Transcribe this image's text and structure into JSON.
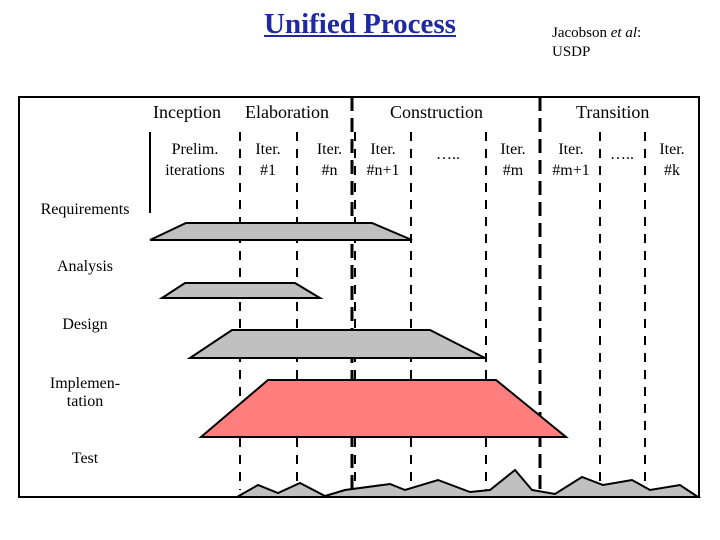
{
  "header": {
    "title": "Unified Process",
    "citation_author": "Jacobson",
    "citation_etal": "et al",
    "citation_colon": ":",
    "citation_source": "USDP"
  },
  "phases": {
    "inception": "Inception",
    "elaboration": "Elaboration",
    "construction": "Construction",
    "transition": "Transition"
  },
  "iterations": [
    {
      "line1": "Prelim.",
      "line2": "iterations"
    },
    {
      "line1": "Iter.",
      "line2": "#1"
    },
    {
      "line1": "Iter.",
      "line2": "#n"
    },
    {
      "line1": "Iter.",
      "line2": "#n+1"
    },
    {
      "line1": "…..",
      "line2": ""
    },
    {
      "line1": "Iter.",
      "line2": "#m"
    },
    {
      "line1": "Iter.",
      "line2": "#m+1"
    },
    {
      "line1": "…..",
      "line2": ""
    },
    {
      "line1": "Iter.",
      "line2": "#k"
    }
  ],
  "workflows": [
    {
      "line1": "Requirements",
      "line2": ""
    },
    {
      "line1": "Analysis",
      "line2": ""
    },
    {
      "line1": "Design",
      "line2": ""
    },
    {
      "line1": "Implemen-",
      "line2": "tation"
    },
    {
      "line1": "Test",
      "line2": ""
    }
  ],
  "colors": {
    "title": "#1f2aa0",
    "gray_shape": "#c0c0c0",
    "implementation_shape": "#ff7f7f"
  }
}
